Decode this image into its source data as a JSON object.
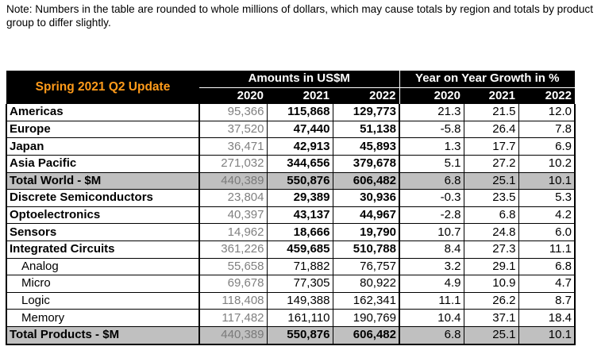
{
  "note": "Note: Numbers in the table are rounded to whole millions of dollars, which may cause totals by region and totals by product group to differ slightly.",
  "table": {
    "update_label": "Spring 2021 Q2 Update",
    "amounts_header": "Amounts in US$M",
    "growth_header": "Year on Year Growth in %",
    "years": [
      "2020",
      "2021",
      "2022"
    ],
    "rows": [
      {
        "label": "Americas",
        "a2020": "95,366",
        "a2021": "115,868",
        "a2022": "129,773",
        "g2020": "21.3",
        "g2021": "21.5",
        "g2022": "12.0"
      },
      {
        "label": "Europe",
        "a2020": "37,520",
        "a2021": "47,440",
        "a2022": "51,138",
        "g2020": "-5.8",
        "g2021": "26.4",
        "g2022": "7.8"
      },
      {
        "label": "Japan",
        "a2020": "36,471",
        "a2021": "42,913",
        "a2022": "45,893",
        "g2020": "1.3",
        "g2021": "17.7",
        "g2022": "6.9"
      },
      {
        "label": "Asia Pacific",
        "a2020": "271,032",
        "a2021": "344,656",
        "a2022": "379,678",
        "g2020": "5.1",
        "g2021": "27.2",
        "g2022": "10.2"
      },
      {
        "label": "Total World - $M",
        "a2020": "440,389",
        "a2021": "550,876",
        "a2022": "606,482",
        "g2020": "6.8",
        "g2021": "25.1",
        "g2022": "10.1"
      },
      {
        "label": "Discrete Semiconductors",
        "a2020": "23,804",
        "a2021": "29,389",
        "a2022": "30,936",
        "g2020": "-0.3",
        "g2021": "23.5",
        "g2022": "5.3"
      },
      {
        "label": "Optoelectronics",
        "a2020": "40,397",
        "a2021": "43,137",
        "a2022": "44,967",
        "g2020": "-2.8",
        "g2021": "6.8",
        "g2022": "4.2"
      },
      {
        "label": "Sensors",
        "a2020": "14,962",
        "a2021": "18,666",
        "a2022": "19,790",
        "g2020": "10.7",
        "g2021": "24.8",
        "g2022": "6.0"
      },
      {
        "label": "Integrated Circuits",
        "a2020": "361,226",
        "a2021": "459,685",
        "a2022": "510,788",
        "g2020": "8.4",
        "g2021": "27.3",
        "g2022": "11.1"
      },
      {
        "label": "Analog",
        "a2020": "55,658",
        "a2021": "71,882",
        "a2022": "76,757",
        "g2020": "3.2",
        "g2021": "29.1",
        "g2022": "6.8"
      },
      {
        "label": "Micro",
        "a2020": "69,678",
        "a2021": "77,305",
        "a2022": "80,922",
        "g2020": "4.9",
        "g2021": "10.9",
        "g2022": "4.7"
      },
      {
        "label": "Logic",
        "a2020": "118,408",
        "a2021": "149,388",
        "a2022": "162,341",
        "g2020": "11.1",
        "g2021": "26.2",
        "g2022": "8.7"
      },
      {
        "label": "Memory",
        "a2020": "117,482",
        "a2021": "161,110",
        "a2022": "190,769",
        "g2020": "10.4",
        "g2021": "37.1",
        "g2022": "18.4"
      },
      {
        "label": "Total Products - $M",
        "a2020": "440,389",
        "a2021": "550,876",
        "a2022": "606,482",
        "g2020": "6.8",
        "g2021": "25.1",
        "g2022": "10.1"
      }
    ]
  }
}
